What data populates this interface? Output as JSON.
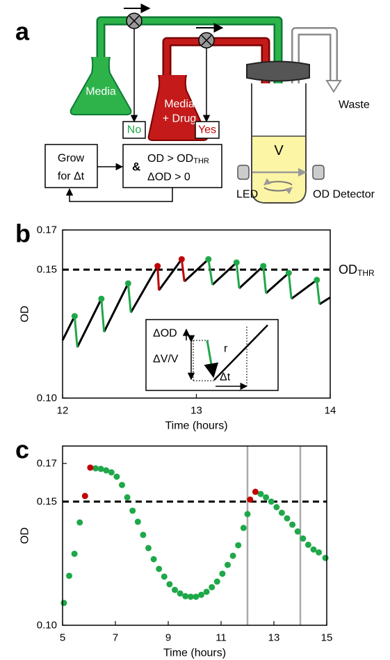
{
  "diagram": {
    "label": "a",
    "media_flask": "Media",
    "drug_flask": [
      "Media",
      "+ Drug"
    ],
    "no": "No",
    "yes": "Yes",
    "grow": [
      "Grow",
      "for Δt"
    ],
    "and": "&",
    "condition1": {
      "text": "OD > OD",
      "subscript": "THR"
    },
    "condition2": "ΔOD > 0",
    "volume": "V",
    "waste": "Waste",
    "led": "LED",
    "detector": "OD Detector"
  },
  "chart_data": [
    {
      "type": "line",
      "panel_label": "b",
      "xlabel": "Time (hours)",
      "ylabel": "OD",
      "log_scale": true,
      "grid": false,
      "xlim": [
        12,
        14
      ],
      "xticks": [
        12,
        13,
        14
      ],
      "ylim": [
        0.1,
        0.17
      ],
      "yticks": [
        {
          "value": 0.1,
          "label": "0.10"
        },
        0.15,
        0.17
      ],
      "threshold": {
        "value": 0.15,
        "label": {
          "text": "OD",
          "subscript": "THR"
        }
      },
      "series": [
        {
          "color": "#000000",
          "x": [
            12.0,
            12.09,
            null,
            12.11,
            12.29,
            null,
            12.31,
            12.49,
            null,
            12.51,
            12.71,
            null,
            12.72,
            12.89,
            null,
            12.91,
            13.09,
            null,
            13.12,
            13.3,
            null,
            13.32,
            13.5,
            null,
            13.52,
            13.69,
            null,
            13.71,
            13.9,
            null,
            13.92,
            14.0
          ],
          "values": [
            0.12,
            0.1295,
            null,
            0.1174,
            0.1368,
            null,
            0.1232,
            0.1436,
            null,
            0.131,
            0.1517,
            null,
            0.1405,
            0.155,
            null,
            0.1445,
            0.155,
            null,
            0.143,
            0.1534,
            null,
            0.1414,
            0.1517,
            null,
            0.1392,
            0.1484,
            null,
            0.1368,
            0.1452,
            null,
            0.1345,
            0.1374
          ]
        },
        {
          "color": "#1fa84a",
          "marker": "circle",
          "x": [
            12.09,
            12.11,
            null,
            12.29,
            12.31,
            null,
            12.49,
            12.51,
            null,
            13.09,
            13.12,
            null,
            13.3,
            13.32,
            null,
            13.5,
            13.52,
            null,
            13.69,
            13.71,
            null,
            13.9,
            13.92
          ],
          "values": [
            0.1295,
            0.1174,
            null,
            0.1368,
            0.1232,
            null,
            0.1436,
            0.131,
            null,
            0.155,
            0.143,
            null,
            0.1534,
            0.1414,
            null,
            0.1517,
            0.1392,
            null,
            0.1484,
            0.1368,
            null,
            0.1452,
            0.1345
          ]
        },
        {
          "color": "#c00000",
          "marker": "circle",
          "x": [
            12.71,
            12.72,
            null,
            12.89,
            12.91
          ],
          "values": [
            0.1517,
            0.1405,
            null,
            0.155,
            0.1445
          ]
        }
      ],
      "inset": {
        "delta_od": "ΔOD",
        "delta_v": "ΔV/V",
        "rate": "r",
        "delta_t": "Δt"
      }
    },
    {
      "type": "scatter",
      "panel_label": "c",
      "xlabel": "Time (hours)",
      "ylabel": "OD",
      "log_scale": true,
      "grid": false,
      "xlim": [
        5,
        15
      ],
      "xticks": [
        5,
        7,
        9,
        11,
        13,
        15
      ],
      "ylim": [
        0.1,
        0.18
      ],
      "yticks": [
        {
          "value": 0.1,
          "label": "0.10"
        },
        0.15,
        0.17
      ],
      "threshold": {
        "value": 0.15
      },
      "vlines": [
        12,
        14
      ],
      "vline_color": "#aaaaaa",
      "series": [
        {
          "color": "#1fa84a",
          "x": [
            5.05,
            5.25,
            5.45,
            5.65,
            6.25,
            6.45,
            6.65,
            6.85,
            7.05,
            7.25,
            7.45,
            7.65,
            7.85,
            8.05,
            8.25,
            8.45,
            8.65,
            8.85,
            9.05,
            9.25,
            9.45,
            9.65,
            9.85,
            10.05,
            10.25,
            10.45,
            10.65,
            10.85,
            11.05,
            11.25,
            11.45,
            11.65,
            11.85,
            12.0,
            12.5,
            12.7,
            12.9,
            13.1,
            13.3,
            13.5,
            13.7,
            13.9,
            14.1,
            14.3,
            14.5,
            14.7,
            14.95
          ],
          "values": [
            0.1076,
            0.1176,
            0.1264,
            0.1401,
            0.1673,
            0.167,
            0.1662,
            0.1651,
            0.1628,
            0.1584,
            0.1521,
            0.1456,
            0.1404,
            0.1345,
            0.1288,
            0.1242,
            0.1203,
            0.1173,
            0.1144,
            0.1123,
            0.111,
            0.11,
            0.1098,
            0.1098,
            0.1105,
            0.1116,
            0.1133,
            0.1154,
            0.1184,
            0.1219,
            0.1256,
            0.13,
            0.1376,
            0.144,
            0.1538,
            0.1521,
            0.15,
            0.1473,
            0.1446,
            0.142,
            0.1391,
            0.136,
            0.1329,
            0.1302,
            0.1282,
            0.127,
            0.1247
          ]
        },
        {
          "color": "#c00000",
          "x": [
            5.85,
            6.05,
            12.1,
            12.3
          ],
          "values": [
            0.1528,
            0.1677,
            0.151,
            0.1549
          ]
        }
      ]
    }
  ]
}
